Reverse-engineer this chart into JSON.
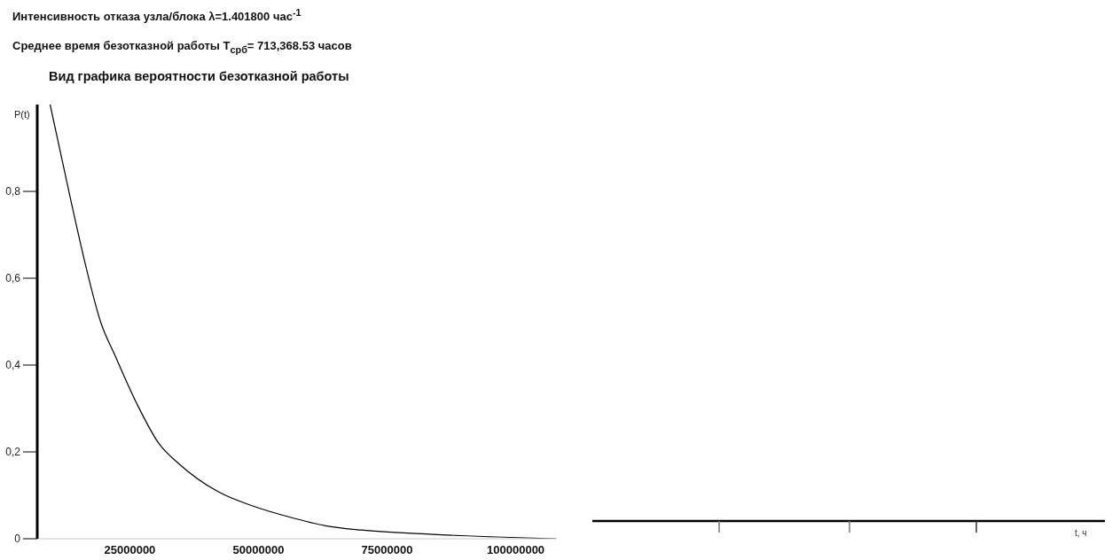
{
  "chart_data": {
    "type": "line",
    "title": "Вид графика вероятности безотказной работы",
    "annotations": [
      "Интенсивность отказа узла/блока λ=1.401800 час$^{-1}$",
      "Среднее время безотказной работы T$_{срб}$= 713,368.53 часов",
      "t, ч"
    ],
    "ylabel": "P(t)",
    "x": [
      9500000,
      13700000,
      16600000,
      19300000,
      22200000,
      26400000,
      30600000,
      34800000,
      41900000,
      49000000,
      56000000,
      63000000,
      70000000,
      84000000,
      107800000
    ],
    "series": [
      {
        "color": "#000000",
        "values": [
          1.0,
          0.77,
          0.62,
          0.5,
          0.42,
          0.31,
          0.22,
          0.17,
          0.11,
          0.075,
          0.05,
          0.03,
          0.02,
          0.01,
          0.0
        ]
      }
    ],
    "xlim": [
      7000000,
      108000000
    ],
    "xticks": [
      25000000,
      50000000,
      75000000,
      100000000
    ],
    "ylim": [
      0,
      1.0
    ],
    "yticks": [
      0,
      {
        "value": 0.2,
        "label": "0,2"
      },
      {
        "value": 0.4,
        "label": "0,4"
      },
      {
        "value": 0.6,
        "label": "0,6"
      },
      {
        "value": 0.8,
        "label": "0,8"
      }
    ],
    "line_style": "solid",
    "grid": false,
    "legend": false
  }
}
